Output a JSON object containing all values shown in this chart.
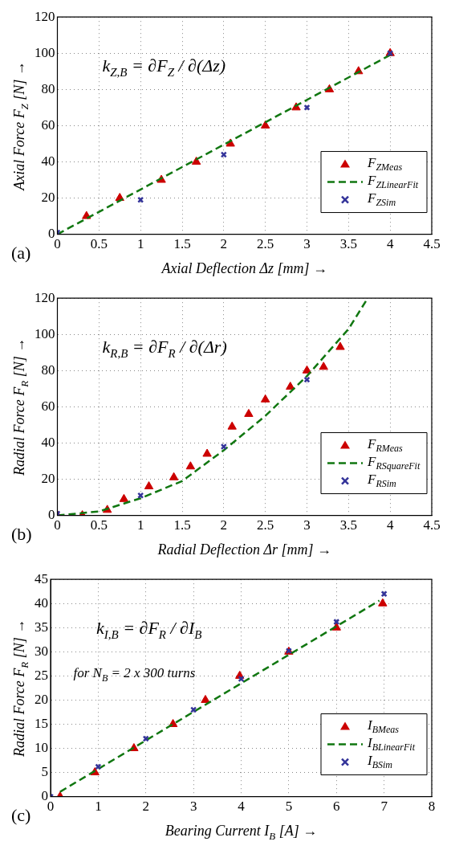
{
  "chart_data": [
    {
      "type": "scatter",
      "xlabel": "Axial Deflection Δz [mm] →",
      "ylabel": "Axial Force F$_{Z}$ [N] →",
      "xlim": [
        0,
        4.5
      ],
      "xticks": [
        0,
        0.5,
        1,
        1.5,
        2,
        2.5,
        3,
        3.5,
        4,
        4.5
      ],
      "ylim": [
        0,
        120
      ],
      "yticks": [
        0,
        20,
        40,
        60,
        80,
        100,
        120
      ],
      "grid": true,
      "legend": "bottom right",
      "annotations": [
        "(a)",
        "k$_{Z,B}$ = ∂F$_{Z}$ / ∂(Δz)"
      ],
      "series": [
        {
          "name": "F$_{ZMeas}$",
          "type": "scatter",
          "marker": "triangle",
          "color": "#cc0000",
          "x": [
            0.35,
            0.75,
            1.25,
            1.67,
            2.08,
            2.5,
            2.87,
            3.27,
            3.62,
            4
          ],
          "values": [
            10,
            20,
            30,
            40,
            50,
            60,
            70,
            80,
            90,
            100
          ]
        },
        {
          "name": "F$_{ZLinearFit}$",
          "type": "line",
          "line_style": "dashed",
          "color": "#117711",
          "x": [
            0,
            4
          ],
          "values": [
            0,
            99
          ]
        },
        {
          "name": "F$_{ZSim}$",
          "type": "scatter",
          "marker": "cross",
          "color": "#333399",
          "x": [
            0,
            1,
            2,
            3,
            4
          ],
          "values": [
            1,
            19,
            44,
            70,
            100
          ]
        }
      ]
    },
    {
      "type": "scatter",
      "xlabel": "Radial Deflection Δr [mm] →",
      "ylabel": "Radial Force F$_{R}$ [N] →",
      "xlim": [
        0,
        4.5
      ],
      "xticks": [
        0,
        0.5,
        1,
        1.5,
        2,
        2.5,
        3,
        3.5,
        4,
        4.5
      ],
      "ylim": [
        0,
        120
      ],
      "yticks": [
        0,
        20,
        40,
        60,
        80,
        100,
        120
      ],
      "grid": true,
      "legend": "bottom right",
      "annotations": [
        "(b)",
        "k$_{R,B}$ = ∂F$_{R}$ / ∂(Δr)"
      ],
      "series": [
        {
          "name": "F$_{RMeas}$",
          "type": "scatter",
          "marker": "triangle",
          "color": "#cc0000",
          "x": [
            0,
            0.3,
            0.6,
            0.8,
            1.1,
            1.4,
            1.6,
            1.8,
            2.1,
            2.3,
            2.5,
            2.8,
            3.0,
            3.2,
            3.4
          ],
          "values": [
            0,
            0,
            3,
            9,
            16,
            21,
            27,
            34,
            49,
            56,
            64,
            71,
            80,
            82,
            93
          ]
        },
        {
          "name": "F$_{RSquareFit}$",
          "type": "line",
          "line_style": "dashed",
          "color": "#117711",
          "x": [
            0,
            0.5,
            1,
            1.5,
            2,
            2.5,
            3,
            3.5,
            3.73
          ],
          "values": [
            0,
            2.2,
            9.5,
            19,
            36,
            55,
            77,
            103,
            120
          ]
        },
        {
          "name": "F$_{RSim}$",
          "type": "scatter",
          "marker": "cross",
          "color": "#333399",
          "x": [
            0,
            1,
            2,
            3
          ],
          "values": [
            1,
            11,
            38,
            75
          ]
        }
      ]
    },
    {
      "type": "scatter",
      "xlabel": "Bearing Current I$_{B}$ [A] →",
      "ylabel": "Radial Force F$_{R}$ [N] →",
      "xlim": [
        0,
        8
      ],
      "xticks": [
        0,
        1,
        2,
        3,
        4,
        5,
        6,
        7,
        8
      ],
      "ylim": [
        0,
        45
      ],
      "yticks": [
        0,
        5,
        10,
        15,
        20,
        25,
        30,
        35,
        40,
        45
      ],
      "grid": true,
      "legend": "bottom right",
      "annotations": [
        "(c)",
        "k$_{I,B}$ = ∂F$_{R}$ / ∂I$_{B}$",
        "for N$_{B}$ = 2 x 300 turns"
      ],
      "series": [
        {
          "name": "I$_{BMeas}$",
          "type": "scatter",
          "marker": "triangle",
          "color": "#cc0000",
          "x": [
            0.2,
            0.93,
            1.75,
            2.57,
            3.25,
            3.97,
            5,
            6,
            6.97
          ],
          "values": [
            0,
            5,
            10,
            15,
            20,
            25,
            30,
            35,
            40
          ]
        },
        {
          "name": "I$_{BLinearFit}$",
          "type": "line",
          "line_style": "dashed",
          "color": "#117711",
          "x": [
            0.2,
            6.9
          ],
          "values": [
            1,
            40.6
          ]
        },
        {
          "name": "I$_{BSim}$",
          "type": "scatter",
          "marker": "cross",
          "color": "#333399",
          "x": [
            0,
            1,
            2,
            3,
            4,
            5,
            6,
            7
          ],
          "values": [
            0,
            6.2,
            12,
            18,
            24.4,
            30.2,
            36.2,
            42
          ]
        }
      ]
    }
  ]
}
